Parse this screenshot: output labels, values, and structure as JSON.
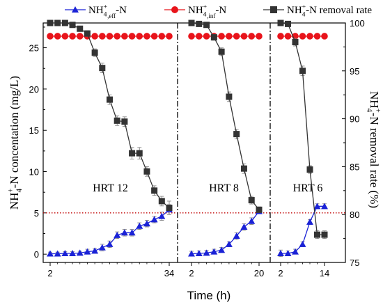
{
  "legend": {
    "eff_label_html": [
      "NH",
      "4",
      "+",
      ",eff",
      "-N"
    ],
    "inf_label_html": [
      "NH",
      "4",
      "+",
      ",inf",
      "-N"
    ],
    "rate_label_html": [
      "NH",
      "4",
      "+",
      "-N removal rate"
    ]
  },
  "axes": {
    "xlabel": "Time (h)",
    "ylabel_left_parts": [
      "NH",
      "4",
      "+",
      "-N concentation (mg/L)"
    ],
    "ylabel_right_parts": [
      "NH",
      "4",
      "+",
      "-N removal rate (%)"
    ]
  },
  "colors": {
    "eff": "#1a22d6",
    "inf": "#e8141b",
    "rate": "#333333",
    "reference_line": "#c00000"
  },
  "chart_data": {
    "type": "line",
    "y_left_lim": [
      -1,
      28
    ],
    "y_left_ticks": [
      0,
      5,
      10,
      15,
      20,
      25
    ],
    "y_right_lim": [
      75,
      100
    ],
    "y_right_ticks": [
      75,
      80,
      85,
      90,
      95,
      100
    ],
    "reference_line_y": 5,
    "grid": false,
    "legend_position": "top",
    "panels": [
      {
        "label": "HRT  12",
        "x_ticks": [
          2,
          34
        ],
        "x": [
          2,
          4,
          6,
          8,
          10,
          12,
          14,
          16,
          18,
          20,
          22,
          24,
          26,
          28,
          30,
          32,
          34
        ],
        "series": [
          {
            "name": "NH4+,eff-N",
            "axis": "left",
            "values": [
              0.05,
              0.05,
              0.1,
              0.1,
              0.15,
              0.3,
              0.4,
              0.8,
              1.2,
              2.3,
              2.6,
              2.6,
              3.4,
              3.7,
              4.2,
              4.6,
              5.4
            ],
            "errors": [
              0.2,
              0.2,
              0.2,
              0.2,
              0.2,
              0.3,
              0.3,
              0.4,
              0.4,
              0.4,
              0.4,
              0.4,
              0.4,
              0.4,
              0.4,
              0.5,
              0.6
            ]
          },
          {
            "name": "NH4+,inf-N",
            "axis": "left",
            "values": [
              26.4,
              26.4,
              26.4,
              26.4,
              26.4,
              26.4,
              26.4,
              26.4,
              26.4,
              26.4,
              26.4,
              26.4,
              26.4,
              26.4,
              26.4,
              26.4,
              26.4
            ]
          },
          {
            "name": "NH4+-N removal rate",
            "axis": "right",
            "values": [
              100,
              100,
              100,
              99.8,
              99.4,
              98.9,
              96.9,
              95.3,
              92.0,
              89.8,
              89.7,
              86.4,
              86.4,
              84.5,
              82.5,
              81.4,
              80.7
            ],
            "errors": [
              0.1,
              0.1,
              0.1,
              0.2,
              0.2,
              0.3,
              0.4,
              0.5,
              0.5,
              0.5,
              0.5,
              0.6,
              0.6,
              0.5,
              0.5,
              0.5,
              0.7
            ]
          }
        ]
      },
      {
        "label": "HRT  8",
        "x_ticks": [
          2,
          20
        ],
        "x": [
          2,
          4,
          6,
          8,
          10,
          12,
          14,
          16,
          18,
          20
        ],
        "series": [
          {
            "name": "NH4+,eff-N",
            "axis": "left",
            "values": [
              0.05,
              0.1,
              0.15,
              0.3,
              0.5,
              1.2,
              2.2,
              3.3,
              4.0,
              5.2
            ],
            "errors": [
              0.3,
              0.3,
              0.3,
              0.3,
              0.3,
              0.3,
              0.4,
              0.4,
              0.4,
              0.3
            ]
          },
          {
            "name": "NH4+,inf-N",
            "axis": "left",
            "values": [
              26.4,
              26.4,
              26.4,
              26.4,
              26.4,
              26.4,
              26.4,
              26.4,
              26.4,
              26.4
            ]
          },
          {
            "name": "NH4+-N removal rate",
            "axis": "right",
            "values": [
              100,
              99.9,
              99.8,
              98.5,
              97.0,
              92.3,
              88.4,
              84.8,
              81.5,
              80.5
            ],
            "errors": [
              0.1,
              0.1,
              0.2,
              0.3,
              0.4,
              0.5,
              0.5,
              0.5,
              0.4,
              0.3
            ]
          }
        ]
      },
      {
        "label": "HRT  6",
        "x_ticks": [
          2,
          14
        ],
        "x": [
          2,
          4,
          6,
          8,
          10,
          12,
          14
        ],
        "series": [
          {
            "name": "NH4+,eff-N",
            "axis": "left",
            "values": [
              0.1,
              0.1,
              0.3,
              1.2,
              3.9,
              5.8,
              5.8
            ],
            "errors": [
              0.4,
              0.3,
              0.3,
              0.3,
              0.3,
              0.3,
              0.3
            ]
          },
          {
            "name": "NH4+,inf-N",
            "axis": "left",
            "values": [
              26.4,
              26.4,
              26.4,
              26.4,
              26.4,
              26.4,
              26.4
            ]
          },
          {
            "name": "NH4+-N removal rate",
            "axis": "right",
            "values": [
              100,
              99.9,
              98.0,
              95.0,
              84.7,
              77.9,
              77.9
            ],
            "errors": [
              0.1,
              0.2,
              0.4,
              0.5,
              0.4,
              0.4,
              0.4
            ]
          }
        ]
      }
    ]
  }
}
